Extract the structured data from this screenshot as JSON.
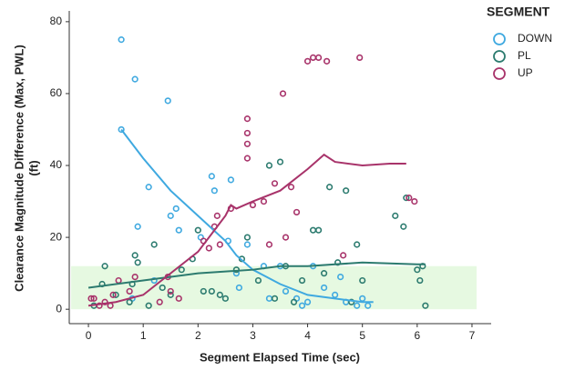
{
  "chart_data": {
    "type": "scatter",
    "xlabel": "Segment Elapsed Time (sec)",
    "ylabel": [
      "Clearance Magnitude Difference (Max, PWL)",
      "(ft)"
    ],
    "legend_title": "SEGMENT",
    "xlim": [
      -0.35,
      7.35
    ],
    "ylim": [
      -4,
      83
    ],
    "xticks": [
      0,
      1,
      2,
      3,
      4,
      5,
      6,
      7
    ],
    "yticks": [
      0,
      20,
      40,
      60,
      80
    ],
    "band": {
      "ylim": [
        0,
        12
      ],
      "color": "#e6f9e1"
    },
    "series": [
      {
        "name": "DOWN",
        "color": "#3fa9e0",
        "x": [
          0.6,
          0.6,
          0.85,
          1.45,
          1.1,
          0.9,
          1.5,
          1.65,
          2.05,
          2.25,
          2.3,
          2.6,
          1.6,
          2.55,
          2.7,
          2.75,
          2.9,
          3.2,
          3.3,
          3.6,
          3.8,
          4.0,
          4.1,
          4.3,
          4.6,
          4.7,
          4.9,
          5.0,
          5.1,
          0.8,
          1.2,
          3.5,
          4.5,
          3.9
        ],
        "y": [
          75,
          50,
          64,
          58,
          34,
          23,
          26,
          22,
          20,
          37,
          33,
          36,
          28,
          19,
          10,
          6,
          18,
          12,
          3,
          5,
          3,
          2,
          12,
          6,
          9,
          2,
          1,
          3,
          1,
          3,
          8,
          12,
          4,
          1
        ],
        "fit_x": [
          0.6,
          1,
          1.5,
          2,
          2.5,
          2.7,
          3,
          3.5,
          4,
          4.5,
          5,
          5.2
        ],
        "fit_y": [
          50,
          42,
          33,
          26,
          19,
          15,
          11,
          7,
          4,
          3,
          2,
          2
        ]
      },
      {
        "name": "PL",
        "color": "#2c7b6f",
        "x": [
          0.1,
          0.25,
          0.3,
          0.5,
          0.75,
          0.8,
          0.85,
          0.9,
          1.1,
          1.2,
          1.35,
          1.5,
          1.7,
          1.9,
          2.0,
          2.25,
          2.4,
          2.5,
          2.7,
          2.8,
          2.9,
          3.1,
          3.3,
          3.5,
          3.6,
          3.75,
          3.9,
          4.1,
          4.2,
          4.3,
          4.4,
          4.55,
          4.7,
          4.8,
          4.9,
          5.0,
          5.6,
          5.75,
          5.8,
          6.0,
          6.05,
          6.1,
          6.15,
          3.4,
          2.1
        ],
        "y": [
          1,
          7,
          12,
          4,
          2,
          7,
          15,
          13,
          1,
          18,
          6,
          4,
          11,
          14,
          22,
          5,
          4,
          3,
          11,
          14,
          20,
          8,
          40,
          41,
          12,
          2,
          8,
          22,
          22,
          10,
          34,
          13,
          33,
          2,
          18,
          8,
          26,
          23,
          31,
          11,
          8,
          12,
          1,
          3,
          5
        ],
        "fit_x": [
          0,
          1,
          2,
          3,
          3.5,
          4,
          5,
          6,
          6.15
        ],
        "fit_y": [
          6,
          8,
          10,
          11,
          12,
          12,
          13,
          12.5,
          12.5
        ]
      },
      {
        "name": "UP",
        "color": "#a8336a",
        "x": [
          0.05,
          0.1,
          0.2,
          0.3,
          0.4,
          0.45,
          0.55,
          0.75,
          0.85,
          1.3,
          1.45,
          1.5,
          1.65,
          2.2,
          2.3,
          2.35,
          2.4,
          2.6,
          2.9,
          2.9,
          2.9,
          2.9,
          3.0,
          3.2,
          3.4,
          3.55,
          3.6,
          3.8,
          4.0,
          4.1,
          4.2,
          4.35,
          4.65,
          4.95,
          5.85,
          5.95,
          3.3,
          3.7,
          2.1
        ],
        "y": [
          3,
          3,
          1,
          2,
          1,
          4,
          8,
          5,
          9,
          2,
          9,
          5,
          3,
          17,
          23,
          26,
          18,
          28,
          53,
          49,
          46,
          42,
          29,
          30,
          35,
          60,
          20,
          27,
          69,
          70,
          70,
          69,
          15,
          70,
          31,
          30,
          18,
          34,
          19
        ],
        "fit_x": [
          0,
          0.5,
          1,
          1.5,
          2,
          2.5,
          2.6,
          2.7,
          3,
          3.5,
          4,
          4.3,
          4.5,
          5,
          5.5,
          5.8
        ],
        "fit_y": [
          1,
          2,
          4,
          10,
          16,
          26,
          29,
          28,
          30,
          33,
          39,
          43,
          41,
          40,
          40.5,
          40.5
        ]
      }
    ]
  }
}
